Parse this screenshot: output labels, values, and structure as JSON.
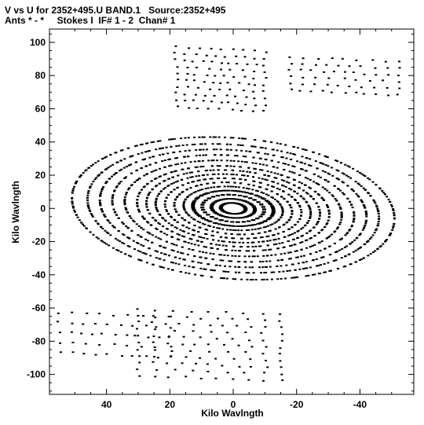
{
  "chart_data": {
    "type": "scatter",
    "title": "V vs U for 2352+495.U BAND.1   Source:2352+495",
    "subtitle": "Ants * - *     Stokes I  IF# 1 - 2  Chan# 1",
    "xlabel": "Kilo Wavlngth",
    "ylabel": "Kilo Wavlngth",
    "xlim": [
      58,
      -57
    ],
    "ylim": [
      -112,
      108
    ],
    "x_ticks": [
      40,
      20,
      0,
      -20,
      -40
    ],
    "x_tick_labels": [
      "40",
      "20",
      "0",
      "-20",
      "-40"
    ],
    "y_ticks": [
      100,
      80,
      60,
      40,
      20,
      0,
      -20,
      -40,
      -60,
      -80,
      -100
    ],
    "y_tick_labels": [
      "100",
      "80",
      "60",
      "40",
      "20",
      "0",
      "-20",
      "-40",
      "-60",
      "-80",
      "-100"
    ],
    "grid": false,
    "marker_color": "#000000",
    "uv_tracks": [
      {
        "radius": 4,
        "axis_ratio": 0.5,
        "tilt_deg": 20,
        "arc_deg": [
          0,
          360
        ]
      },
      {
        "radius": 7,
        "axis_ratio": 0.5,
        "tilt_deg": 20,
        "arc_deg": [
          0,
          360
        ]
      },
      {
        "radius": 10,
        "axis_ratio": 0.5,
        "tilt_deg": 20,
        "arc_deg": [
          0,
          360
        ]
      },
      {
        "radius": 13,
        "axis_ratio": 0.5,
        "tilt_deg": 20,
        "arc_deg": [
          0,
          360
        ]
      },
      {
        "radius": 16,
        "axis_ratio": 0.5,
        "tilt_deg": 20,
        "arc_deg": [
          0,
          360
        ]
      },
      {
        "radius": 19,
        "axis_ratio": 0.5,
        "tilt_deg": 20,
        "arc_deg": [
          0,
          360
        ]
      },
      {
        "radius": 22,
        "axis_ratio": 0.5,
        "tilt_deg": 20,
        "arc_deg": [
          0,
          360
        ]
      },
      {
        "radius": 25,
        "axis_ratio": 0.5,
        "tilt_deg": 20,
        "arc_deg": [
          0,
          360
        ]
      },
      {
        "radius": 28,
        "axis_ratio": 0.5,
        "tilt_deg": 20,
        "arc_deg": [
          0,
          360
        ]
      },
      {
        "radius": 31,
        "axis_ratio": 0.5,
        "tilt_deg": 20,
        "arc_deg": [
          0,
          360
        ]
      },
      {
        "radius": 35,
        "axis_ratio": 0.5,
        "tilt_deg": 20,
        "arc_deg": [
          0,
          360
        ]
      },
      {
        "radius": 39,
        "axis_ratio": 0.5,
        "tilt_deg": 20,
        "arc_deg": [
          0,
          360
        ]
      },
      {
        "radius": 43,
        "axis_ratio": 0.5,
        "tilt_deg": 20,
        "arc_deg": [
          0,
          360
        ]
      },
      {
        "radius": 47,
        "axis_ratio": 0.5,
        "tilt_deg": 20,
        "arc_deg": [
          0,
          360
        ]
      },
      {
        "radius": 52,
        "axis_ratio": 0.5,
        "tilt_deg": 20,
        "arc_deg": [
          0,
          360
        ]
      }
    ],
    "uv_clusters": [
      {
        "center": [
          -5,
          80
        ],
        "u_span": [
          -10,
          18
        ],
        "rows": [
          96,
          92,
          88,
          84,
          80,
          76,
          72,
          68,
          64,
          60
        ]
      },
      {
        "center": [
          -30,
          80
        ],
        "u_span": [
          -52,
          -18
        ],
        "rows": [
          90,
          86,
          82,
          78,
          74,
          70
        ]
      },
      {
        "center": [
          5,
          -80
        ],
        "u_span": [
          -15,
          30
        ],
        "rows": [
          -62,
          -66,
          -70,
          -74,
          -78,
          -82,
          -86,
          -90,
          -94,
          -98,
          -102
        ]
      },
      {
        "center": [
          40,
          -80
        ],
        "u_span": [
          20,
          55
        ],
        "rows": [
          -64,
          -70,
          -76,
          -82,
          -88
        ]
      }
    ]
  }
}
